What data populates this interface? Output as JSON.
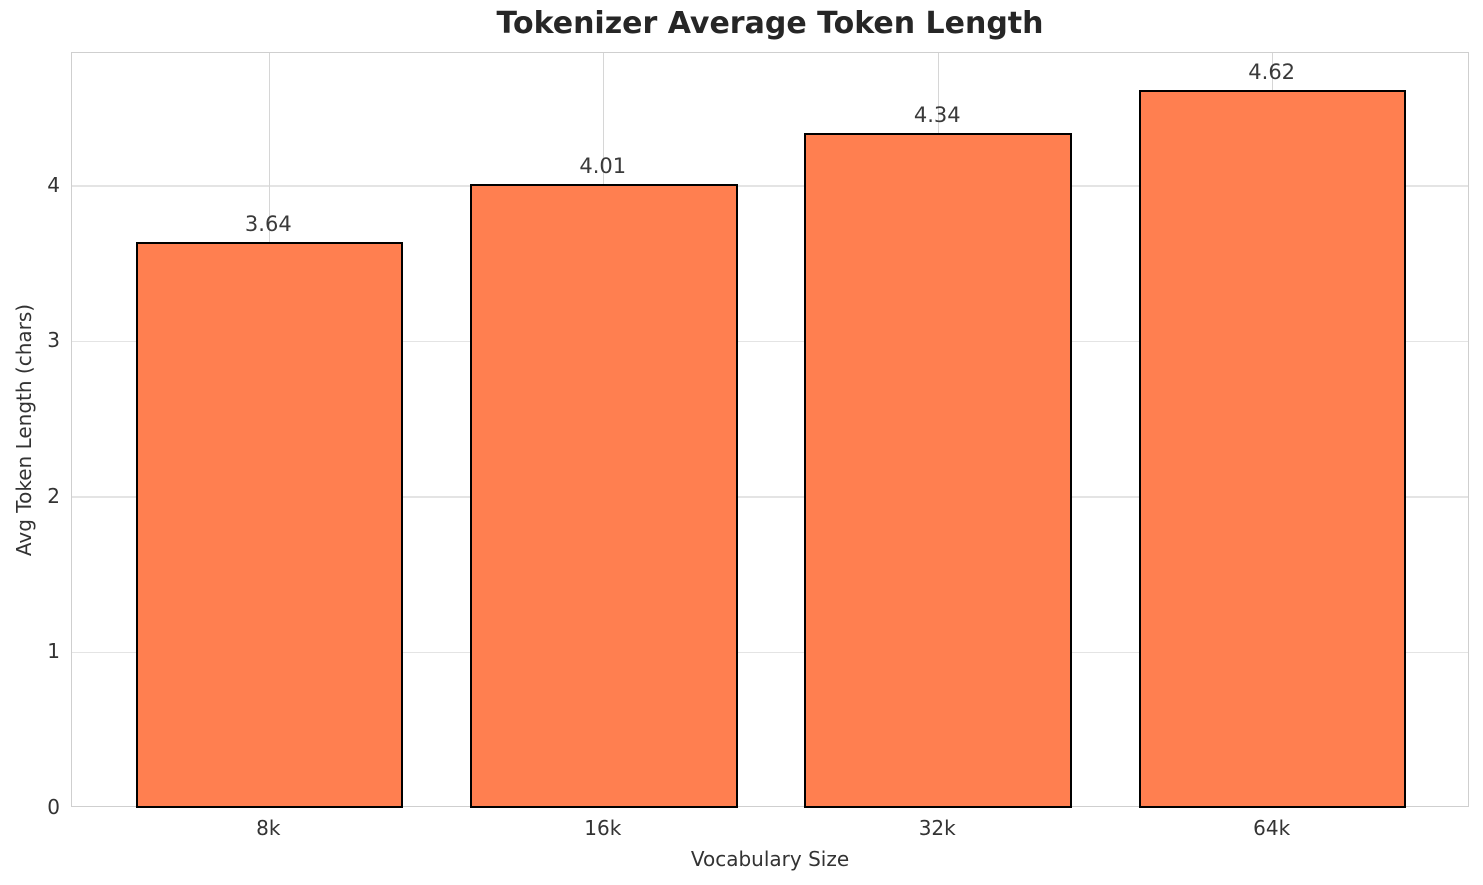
{
  "chart_data": {
    "type": "bar",
    "title": "Tokenizer Average Token Length",
    "categories": [
      "8k",
      "16k",
      "32k",
      "64k"
    ],
    "values": [
      3.64,
      4.01,
      4.34,
      4.62
    ],
    "value_labels": [
      "3.64",
      "4.01",
      "4.34",
      "4.62"
    ],
    "xlabel": "Vocabulary Size",
    "ylabel": "Avg Token Length (chars)",
    "yticks": [
      0,
      1,
      2,
      3,
      4
    ],
    "ytick_labels": [
      "0",
      "1",
      "2",
      "3",
      "4"
    ],
    "ylim": [
      0,
      4.855
    ],
    "xlim": [
      -0.59,
      3.59
    ],
    "bar_width": 0.8,
    "grid": true,
    "legend": "none",
    "colors": {
      "bar_fill": "#FF7F50",
      "bar_edge": "#000000",
      "grid_horizontal": "#e4e4e4",
      "grid_vertical": "#d6d6d6",
      "spine": "#cfcfcf",
      "title_text": "#262626",
      "tick_text": "#333333",
      "value_label_text": "#3a3a3a",
      "background": "#ffffff"
    }
  }
}
